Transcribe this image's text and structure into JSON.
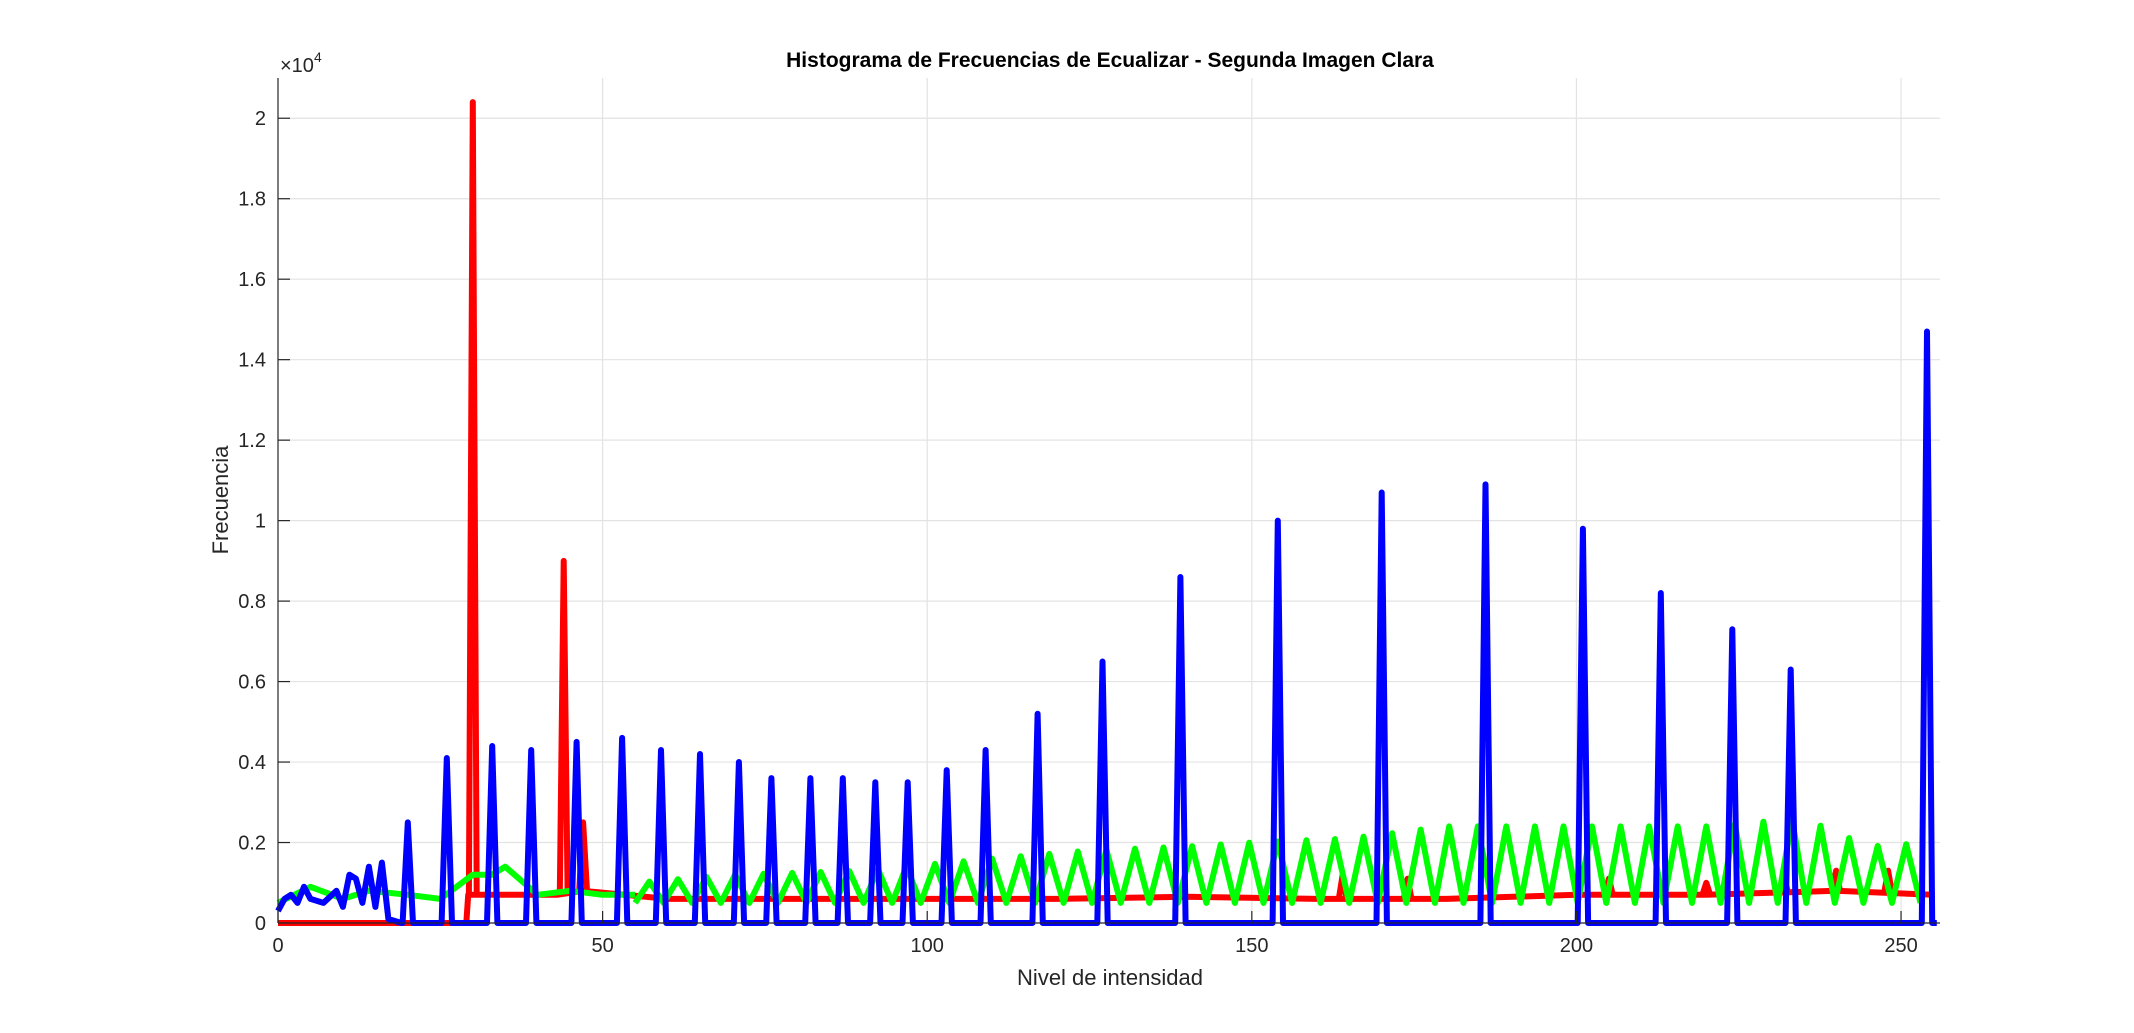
{
  "chart_data": {
    "type": "line",
    "title": "Histograma de Frecuencias de Ecualizar - Segunda Imagen Clara",
    "xlabel": "Nivel de intensidad",
    "ylabel": "Frecuencia",
    "y_exponent_label": "×10",
    "y_exponent_power": "4",
    "xlim": [
      0,
      256
    ],
    "ylim": [
      0,
      2.1
    ],
    "y_scale_factor": 10000,
    "grid": true,
    "legend": "none",
    "x_ticks": [
      0,
      50,
      100,
      150,
      200,
      250
    ],
    "x_tick_labels": [
      "0",
      "50",
      "100",
      "150",
      "200",
      "250"
    ],
    "y_ticks": [
      0,
      0.2,
      0.4,
      0.6,
      0.8,
      1.0,
      1.2,
      1.4,
      1.6,
      1.8,
      2.0
    ],
    "y_tick_labels": [
      "0",
      "0.2",
      "0.4",
      "0.6",
      "0.8",
      "1",
      "1.2",
      "1.4",
      "1.6",
      "1.8",
      "2"
    ],
    "series": [
      {
        "color": "#ff0000",
        "baseline": [
          [
            0,
            0
          ],
          [
            29,
            0
          ],
          [
            29.3,
            0.07
          ],
          [
            31,
            0.07
          ],
          [
            43,
            0.07
          ],
          [
            47,
            0.08
          ],
          [
            60,
            0.06
          ],
          [
            80,
            0.06
          ],
          [
            100,
            0.06
          ],
          [
            120,
            0.06
          ],
          [
            140,
            0.065
          ],
          [
            160,
            0.06
          ],
          [
            180,
            0.06
          ],
          [
            200,
            0.07
          ],
          [
            220,
            0.07
          ],
          [
            240,
            0.08
          ],
          [
            255,
            0.07
          ]
        ],
        "peaks": [
          {
            "x": 30,
            "y": 2.04
          },
          {
            "x": 44,
            "y": 0.9
          },
          {
            "x": 47,
            "y": 0.25
          },
          {
            "x": 164,
            "y": 0.12
          },
          {
            "x": 174,
            "y": 0.11
          },
          {
            "x": 205,
            "y": 0.11
          },
          {
            "x": 220,
            "y": 0.1
          },
          {
            "x": 232,
            "y": 0.11
          },
          {
            "x": 240,
            "y": 0.13
          },
          {
            "x": 248,
            "y": 0.13
          }
        ]
      },
      {
        "color": "#00ff00",
        "baseline": [
          [
            0,
            0.05
          ],
          [
            5,
            0.09
          ],
          [
            10,
            0.06
          ],
          [
            14,
            0.08
          ],
          [
            20,
            0.07
          ],
          [
            25,
            0.06
          ],
          [
            30,
            0.12
          ],
          [
            33,
            0.12
          ],
          [
            35,
            0.14
          ],
          [
            40,
            0.07
          ],
          [
            45,
            0.08
          ],
          [
            50,
            0.07
          ],
          [
            55,
            0.07
          ]
        ],
        "osc_start": 55,
        "osc_end": 255,
        "osc_step": 2.2,
        "osc_low": 0.05,
        "osc_highs": [
          [
            55,
            0.1
          ],
          [
            70,
            0.12
          ],
          [
            90,
            0.13
          ],
          [
            110,
            0.16
          ],
          [
            125,
            0.18
          ],
          [
            140,
            0.19
          ],
          [
            150,
            0.2
          ],
          [
            165,
            0.21
          ],
          [
            180,
            0.24
          ],
          [
            200,
            0.24
          ],
          [
            220,
            0.24
          ],
          [
            235,
            0.26
          ],
          [
            245,
            0.19
          ],
          [
            255,
            0.2
          ]
        ]
      },
      {
        "color": "#0000ff",
        "early": [
          [
            0,
            0.03
          ],
          [
            1,
            0.06
          ],
          [
            2,
            0.07
          ],
          [
            3,
            0.05
          ],
          [
            4,
            0.09
          ],
          [
            5,
            0.06
          ],
          [
            7,
            0.05
          ],
          [
            9,
            0.08
          ],
          [
            10,
            0.04
          ],
          [
            11,
            0.12
          ],
          [
            12,
            0.11
          ],
          [
            13,
            0.05
          ],
          [
            14,
            0.14
          ],
          [
            15,
            0.04
          ],
          [
            16,
            0.15
          ],
          [
            17,
            0.01
          ],
          [
            19,
            0.0
          ]
        ],
        "peaks": [
          {
            "x": 20,
            "y": 0.25
          },
          {
            "x": 26,
            "y": 0.41
          },
          {
            "x": 33,
            "y": 0.44
          },
          {
            "x": 39,
            "y": 0.43
          },
          {
            "x": 46,
            "y": 0.45
          },
          {
            "x": 53,
            "y": 0.46
          },
          {
            "x": 59,
            "y": 0.43
          },
          {
            "x": 65,
            "y": 0.42
          },
          {
            "x": 71,
            "y": 0.4
          },
          {
            "x": 76,
            "y": 0.36
          },
          {
            "x": 82,
            "y": 0.36
          },
          {
            "x": 87,
            "y": 0.36
          },
          {
            "x": 92,
            "y": 0.35
          },
          {
            "x": 97,
            "y": 0.35
          },
          {
            "x": 103,
            "y": 0.38
          },
          {
            "x": 109,
            "y": 0.43
          },
          {
            "x": 117,
            "y": 0.52
          },
          {
            "x": 127,
            "y": 0.65
          },
          {
            "x": 139,
            "y": 0.86
          },
          {
            "x": 154,
            "y": 1.0
          },
          {
            "x": 170,
            "y": 1.07
          },
          {
            "x": 186,
            "y": 1.09
          },
          {
            "x": 201,
            "y": 0.98
          },
          {
            "x": 213,
            "y": 0.82
          },
          {
            "x": 224,
            "y": 0.73
          },
          {
            "x": 233,
            "y": 0.63
          },
          {
            "x": 254,
            "y": 1.47
          }
        ]
      }
    ]
  }
}
